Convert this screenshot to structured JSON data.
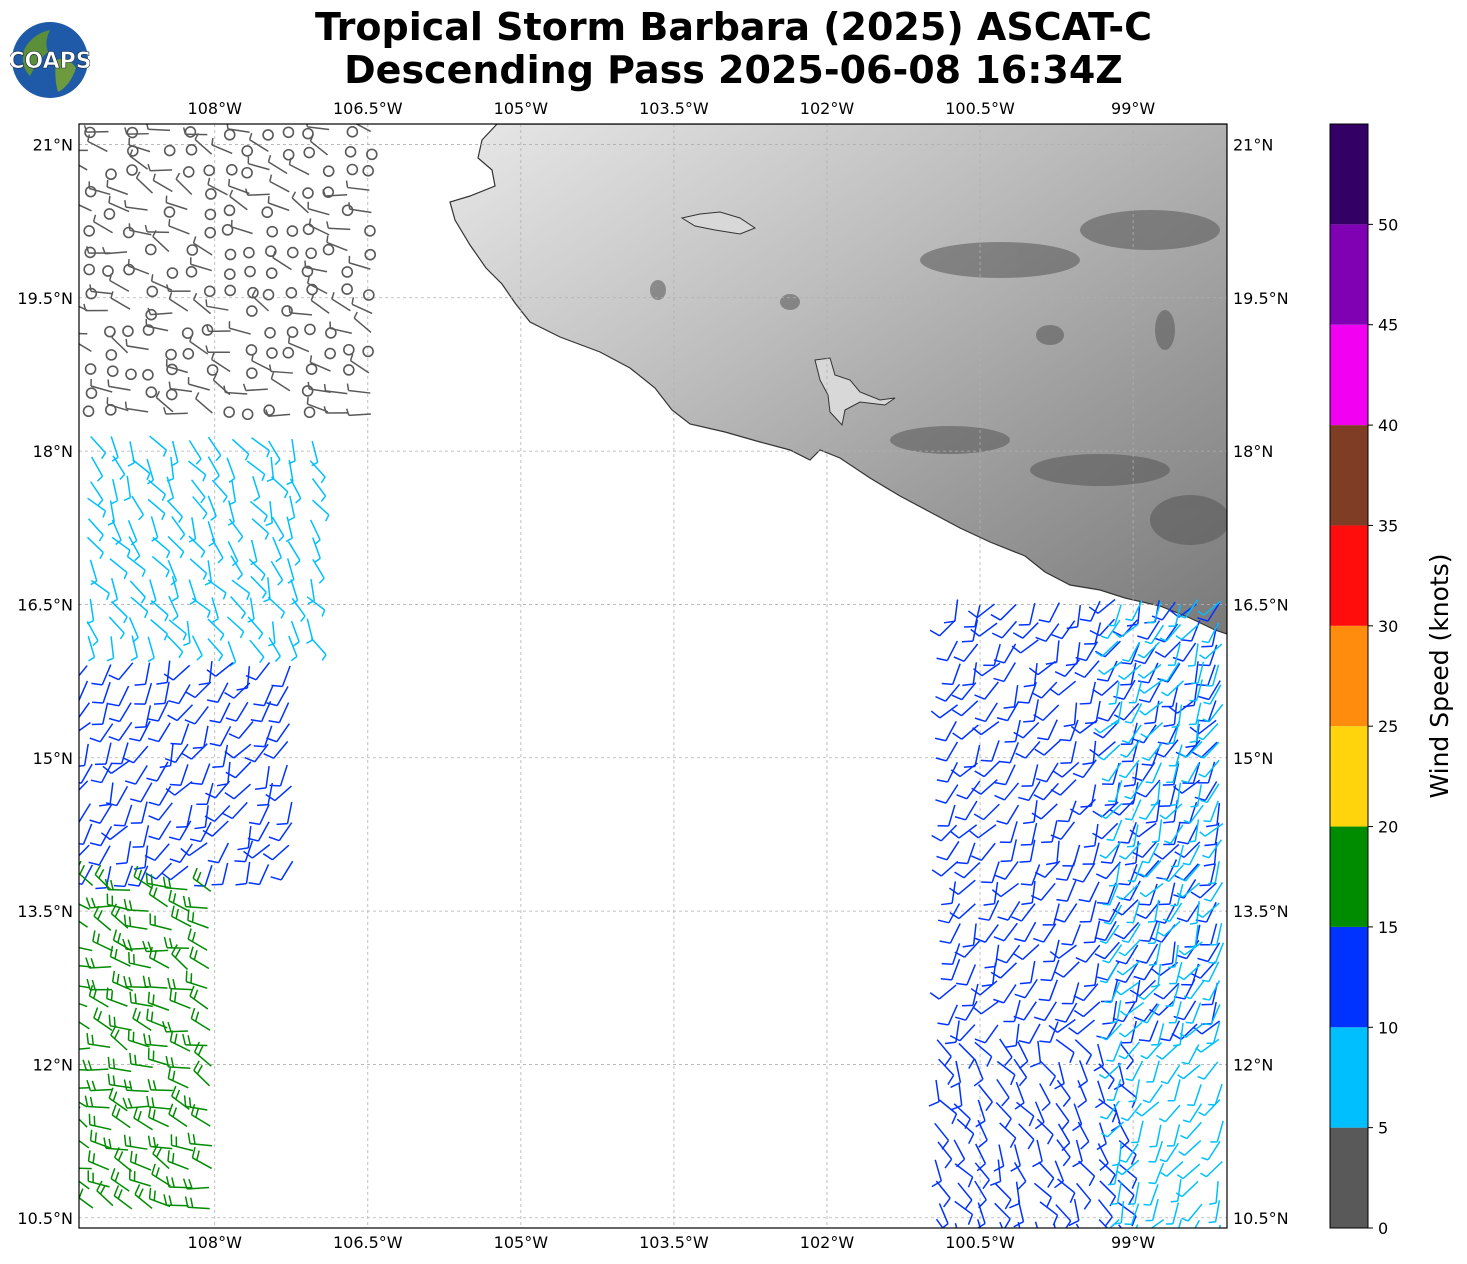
{
  "title": {
    "line1": "Tropical Storm Barbara (2025) ASCAT-C",
    "line2": "Descending Pass 2025-06-08 16:34Z"
  },
  "logo": {
    "text": "COAPS",
    "icon": "globe-icon"
  },
  "map": {
    "lon_ticks": [
      "108°W",
      "106.5°W",
      "105°W",
      "103.5°W",
      "102°W",
      "100.5°W",
      "99°W"
    ],
    "lat_ticks": [
      "21°N",
      "19.5°N",
      "18°N",
      "16.5°N",
      "15°N",
      "13.5°N",
      "12°N",
      "10.5°N"
    ],
    "lon_range": [
      -109.33,
      -98.08
    ],
    "lat_range": [
      10.4,
      21.2
    ],
    "gridlines": true,
    "land_shading": "grayscale terrain (Mexico)"
  },
  "colorbar": {
    "label": "Wind Speed (knots)",
    "ticks": [
      "0",
      "5",
      "10",
      "15",
      "20",
      "25",
      "30",
      "35",
      "40",
      "45",
      "50"
    ],
    "bins": [
      {
        "min": 0,
        "max": 5,
        "color": "#595959"
      },
      {
        "min": 5,
        "max": 10,
        "color": "#00bfff"
      },
      {
        "min": 10,
        "max": 15,
        "color": "#0033ff"
      },
      {
        "min": 15,
        "max": 20,
        "color": "#008c00"
      },
      {
        "min": 20,
        "max": 25,
        "color": "#ffd40d"
      },
      {
        "min": 25,
        "max": 30,
        "color": "#ff8c0d"
      },
      {
        "min": 30,
        "max": 35,
        "color": "#ff0d0d"
      },
      {
        "min": 35,
        "max": 40,
        "color": "#803d26"
      },
      {
        "min": 40,
        "max": 45,
        "color": "#f200f2"
      },
      {
        "min": 45,
        "max": 50,
        "color": "#8000b3"
      },
      {
        "min": 50,
        "max": 55,
        "color": "#330066"
      }
    ]
  },
  "swaths": [
    {
      "name": "west-swath",
      "regions": [
        {
          "lat": [
            18.2,
            21.2
          ],
          "lon_west": -109.3,
          "lon_east": -106.3,
          "band": 0,
          "direction": 200
        },
        {
          "lat": [
            16.0,
            18.2
          ],
          "lon_west": -109.3,
          "lon_east": -106.9,
          "band": 1,
          "direction": 60
        },
        {
          "lat": [
            13.8,
            16.0
          ],
          "lon_west": -109.3,
          "lon_east": -107.2,
          "band": 2,
          "direction": 120
        },
        {
          "lat": [
            10.4,
            13.8
          ],
          "lon_west": -109.3,
          "lon_east": -107.9,
          "band": 3,
          "direction": 200
        }
      ]
    },
    {
      "name": "east-swath",
      "regions": [
        {
          "lat": [
            12.3,
            16.6
          ],
          "lon_west": -100.8,
          "lon_east": -98.1,
          "band": 2,
          "direction": 120
        },
        {
          "lat": [
            10.4,
            12.3
          ],
          "lon_west": -101.0,
          "lon_east": -99.0,
          "band": 2,
          "direction": 60
        },
        {
          "lat": [
            10.4,
            16.6
          ],
          "lon_west": -99.2,
          "lon_east": -98.1,
          "band": 1,
          "direction": 120
        }
      ]
    }
  ]
}
